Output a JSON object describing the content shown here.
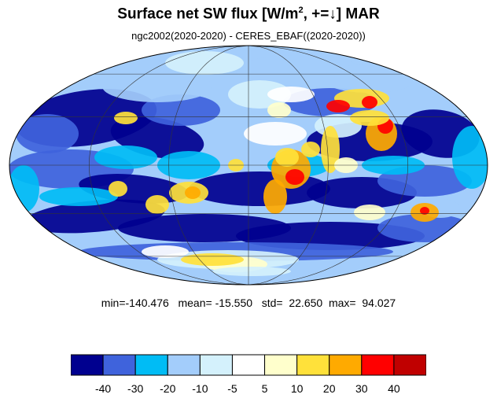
{
  "title": {
    "main": "Surface net SW flux [W/m",
    "sup": "2",
    "rest": ", +=↓]  MAR"
  },
  "subtitle": "ngc2002(2020-2020) - CERES_EBAF((2020-2020))",
  "stats": {
    "min": "-140.476",
    "mean": "-15.550",
    "std": "22.650",
    "max": "94.027"
  },
  "colorbar": {
    "colors": [
      "#00008f",
      "#3f63dc",
      "#00bcf5",
      "#a3cdfb",
      "#d4f1fc",
      "#ffffff",
      "#ffffcc",
      "#ffe13a",
      "#ffaa00",
      "#ff0000",
      "#c00000"
    ],
    "labels": [
      "-40",
      "-30",
      "-20",
      "-10",
      "-5",
      "5",
      "10",
      "20",
      "30",
      "40"
    ]
  },
  "map": {
    "projection": "Mollweide",
    "grid": true,
    "coastlines": true
  }
}
